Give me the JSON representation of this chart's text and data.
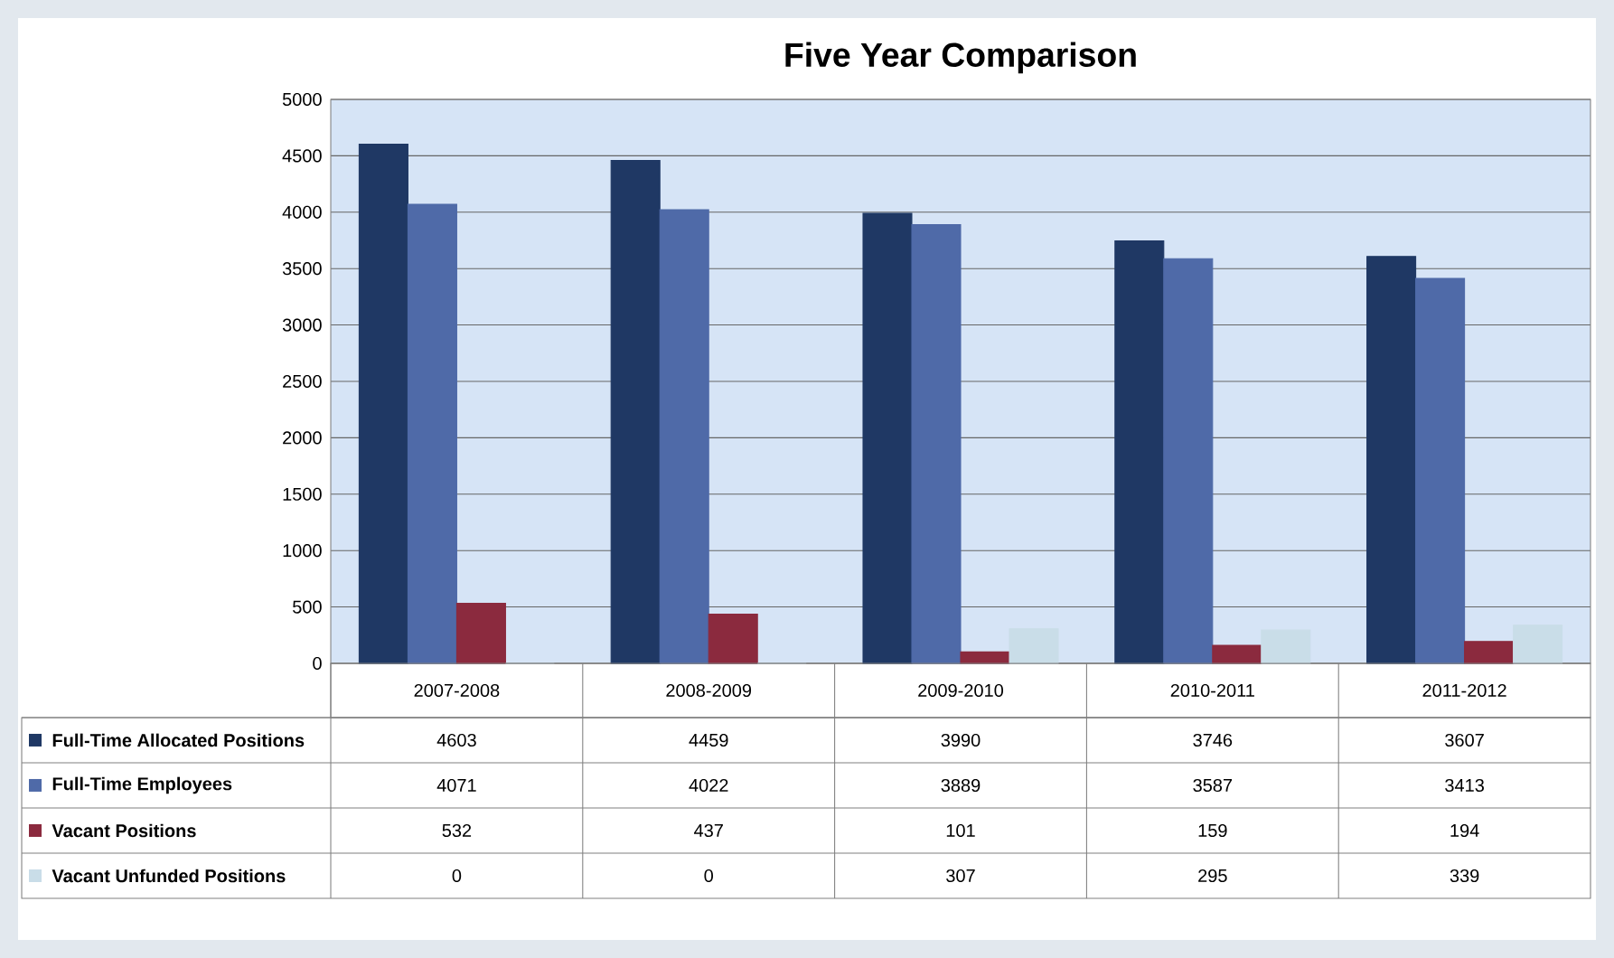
{
  "chart_data": {
    "type": "bar",
    "title": "Five Year Comparison",
    "categories": [
      "2007-2008",
      "2008-2009",
      "2009-2010",
      "2010-2011",
      "2011-2012"
    ],
    "series": [
      {
        "name": "Full-Time Allocated Positions",
        "color": "#1f3864",
        "values": [
          4603,
          4459,
          3990,
          3746,
          3607
        ]
      },
      {
        "name": "Full-Time Employees",
        "color": "#4f6aa8",
        "values": [
          4071,
          4022,
          3889,
          3587,
          3413
        ]
      },
      {
        "name": "Vacant Positions",
        "color": "#8b2a3e",
        "values": [
          532,
          437,
          101,
          159,
          194
        ]
      },
      {
        "name": "Vacant Unfunded Positions",
        "color": "#c9dde8",
        "values": [
          0,
          0,
          307,
          295,
          339
        ]
      }
    ],
    "ylim": [
      0,
      5000
    ],
    "yticks": [
      0,
      500,
      1000,
      1500,
      2000,
      2500,
      3000,
      3500,
      4000,
      4500,
      5000
    ],
    "grid": "y",
    "data_labels": true,
    "legend": "bottom left"
  }
}
